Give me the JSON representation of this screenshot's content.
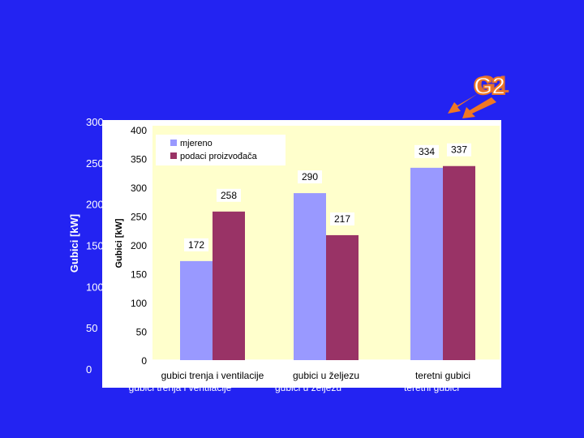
{
  "slide": {
    "badge_back": "G1",
    "badge_front": "G2",
    "arrow_color": "#f07722",
    "background": "#2323f2"
  },
  "chart_data": [
    {
      "type": "bar",
      "role": "background-chart",
      "ylabel": "Gubici [kW]",
      "ylim": [
        0,
        300
      ],
      "yticks": [
        300,
        250,
        200,
        150,
        100,
        50,
        0
      ],
      "categories": [
        "gubici trenja i ventilacije",
        "gubici u željezu",
        "teretni gubici"
      ],
      "series": []
    },
    {
      "type": "bar",
      "role": "foreground-chart",
      "ylabel": "Gubici [kW]",
      "ylim": [
        0,
        400
      ],
      "yticks": [
        400,
        350,
        300,
        250,
        200,
        150,
        100,
        50,
        0
      ],
      "categories": [
        "gubici trenja i ventilacije",
        "gubici u željezu",
        "teretni gubici"
      ],
      "series": [
        {
          "name": "mjereno",
          "values": [
            172,
            290,
            334
          ],
          "color": "#9999ff"
        },
        {
          "name": "podaci proizvođača",
          "values": [
            258,
            217,
            337
          ],
          "color": "#993366"
        }
      ],
      "legend": "top-left",
      "plot_background": "#ffffcc",
      "grid": false
    }
  ]
}
